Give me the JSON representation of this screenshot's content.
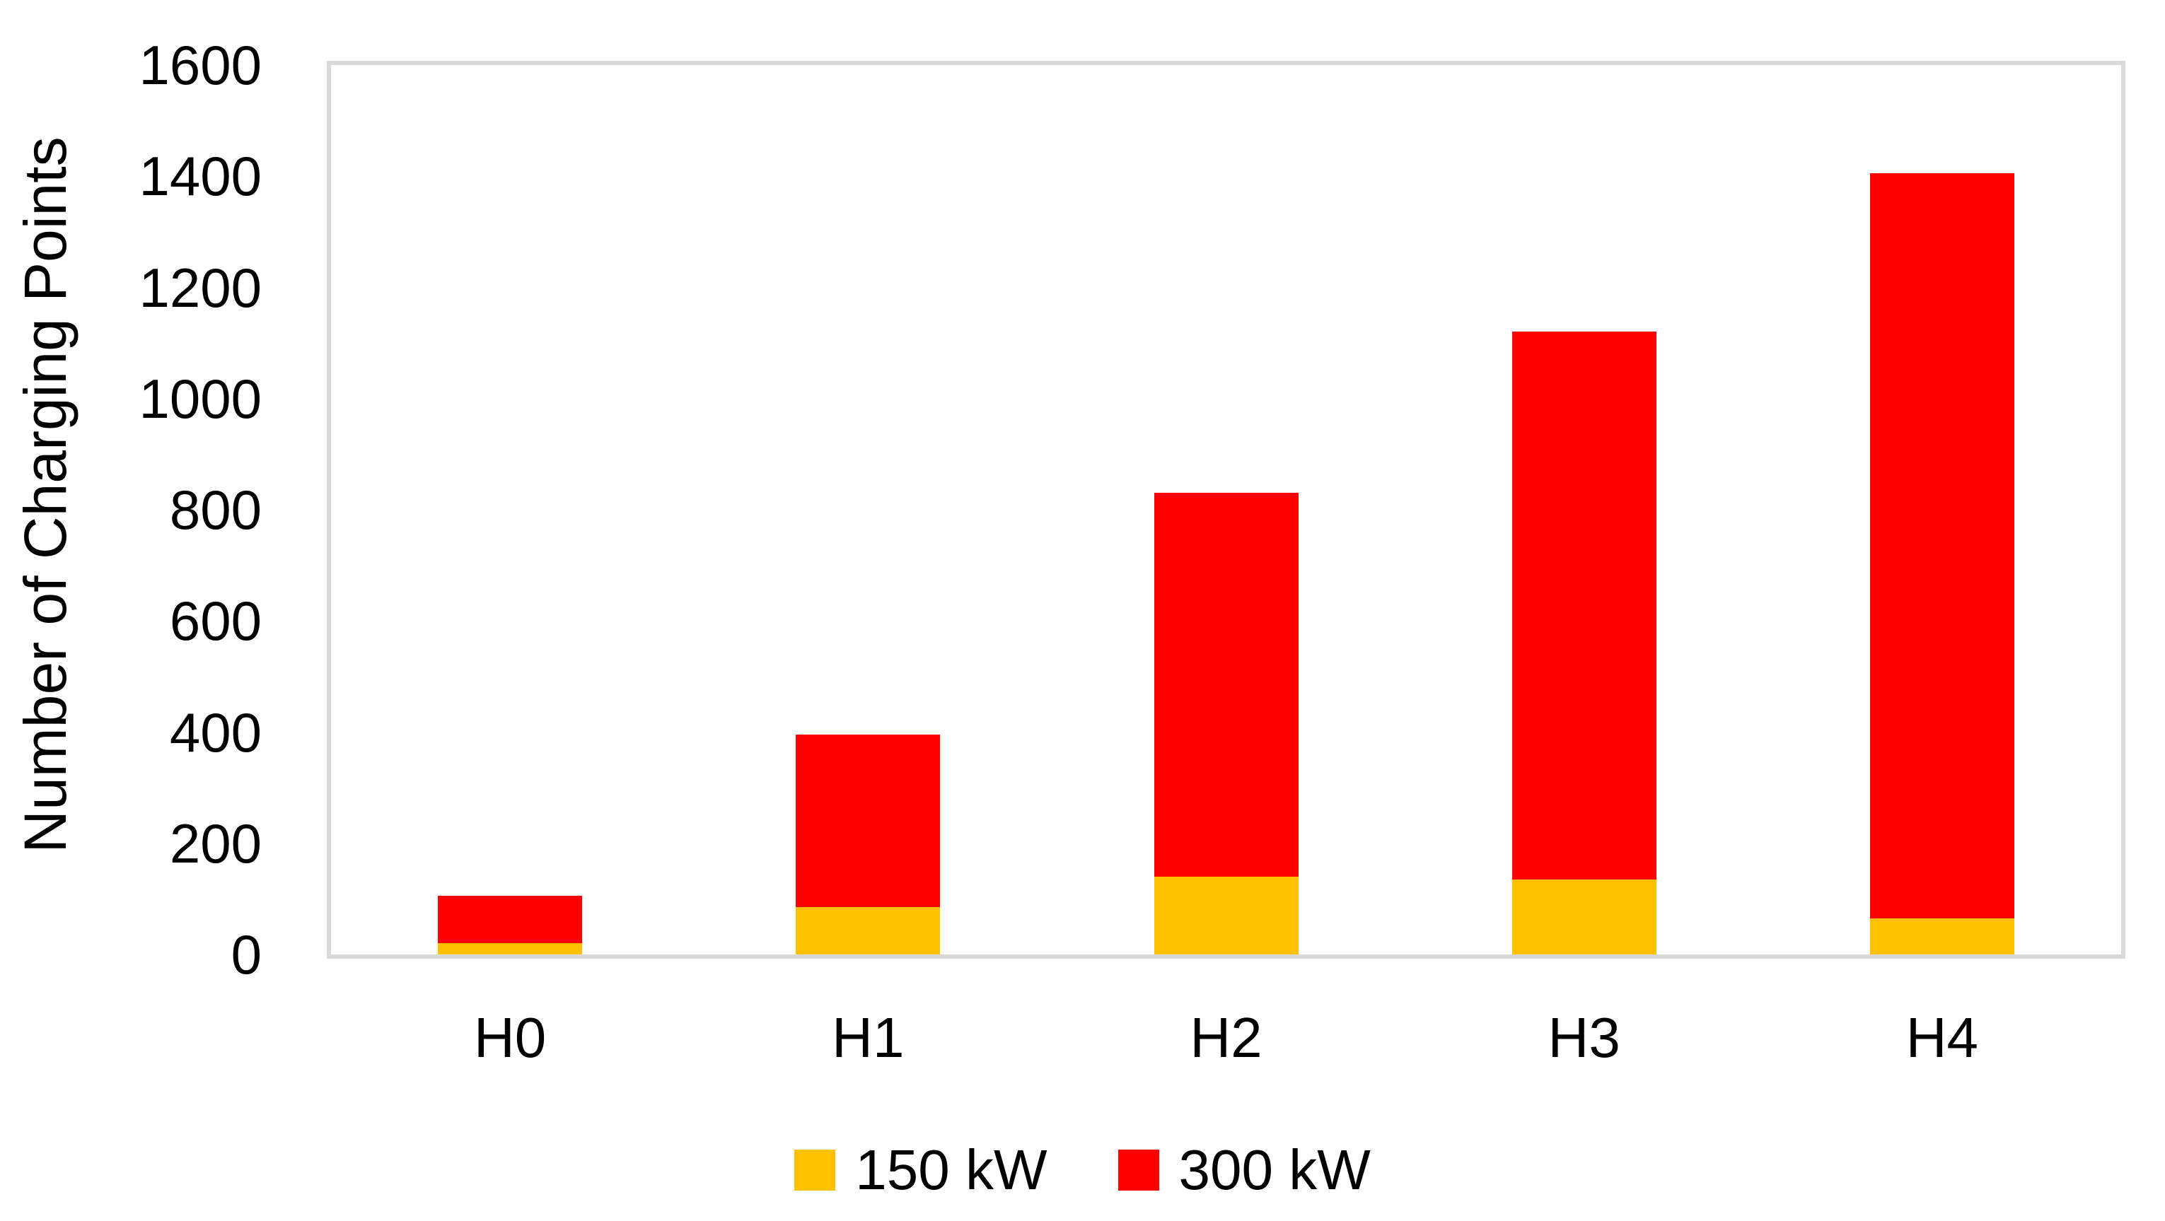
{
  "chart_data": {
    "type": "bar",
    "stacked": true,
    "title": "",
    "categories": [
      "H0",
      "H1",
      "H2",
      "H3",
      "H4"
    ],
    "series": [
      {
        "name": "150 kW",
        "color": "#FFC000",
        "values": [
          20,
          85,
          140,
          135,
          65
        ]
      },
      {
        "name": "300 kW",
        "color": "#FF0000",
        "values": [
          85,
          310,
          690,
          985,
          1340
        ]
      }
    ],
    "stacked_totals": [
      105,
      395,
      830,
      1120,
      1405
    ],
    "xlabel": "",
    "ylabel": "Number of Charging Points",
    "ylim": [
      0,
      1600
    ],
    "yticks": [
      0,
      200,
      400,
      600,
      800,
      1000,
      1200,
      1400,
      1600
    ],
    "grid": false,
    "legend_position": "bottom-center",
    "plot_border_color": "#D9D9D9",
    "text_color": "#000000",
    "background_color": "#FFFFFF"
  }
}
